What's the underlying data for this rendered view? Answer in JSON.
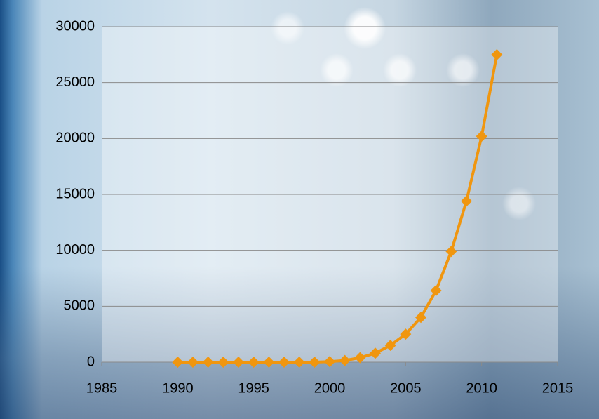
{
  "chart_data": {
    "type": "line",
    "x": [
      1990,
      1991,
      1992,
      1993,
      1994,
      1995,
      1996,
      1997,
      1998,
      1999,
      2000,
      2001,
      2002,
      2003,
      2004,
      2005,
      2006,
      2007,
      2008,
      2009,
      2010,
      2011
    ],
    "series": [
      {
        "color": "#f0960f",
        "values": [
          0,
          0,
          0,
          0,
          0,
          0,
          0,
          0,
          0,
          0,
          50,
          150,
          400,
          800,
          1500,
          2500,
          4000,
          6400,
          9900,
          14400,
          20200,
          27500
        ]
      }
    ],
    "xlim": [
      1985,
      2015
    ],
    "xticks": [
      1985,
      1990,
      1995,
      2000,
      2005,
      2010,
      2015
    ],
    "ylim": [
      0,
      30000
    ],
    "yticks": [
      0,
      5000,
      10000,
      15000,
      20000,
      25000,
      30000
    ],
    "grid": true
  }
}
